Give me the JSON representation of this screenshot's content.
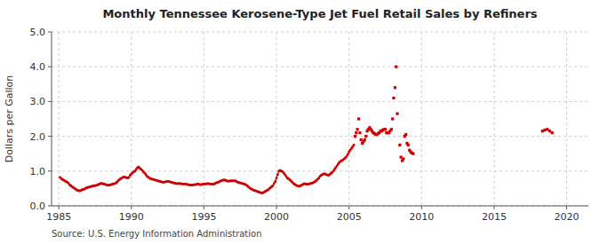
{
  "chart_data": {
    "type": "line",
    "title": "Monthly Tennessee Kerosene-Type Jet Fuel Retail Sales by Refiners",
    "ylabel": "Dollars per Gallon",
    "annotations": [
      "Source: U.S. Energy Information Administration"
    ],
    "xlim": [
      1984.5,
      2021.5
    ],
    "ylim": [
      0.0,
      5.0
    ],
    "xticks": [
      1985,
      1990,
      1995,
      2000,
      2005,
      2010,
      2015,
      2020
    ],
    "yticks": [
      {
        "value": 0.0,
        "label": "0.0"
      },
      {
        "value": 1.0,
        "label": "1.0"
      },
      {
        "value": 2.0,
        "label": "2.0"
      },
      {
        "value": 3.0,
        "label": "3.0"
      },
      {
        "value": 4.0,
        "label": "4.0"
      },
      {
        "value": 5.0,
        "label": "5.0"
      }
    ],
    "grid": true,
    "series": [
      {
        "type": "line",
        "color": "#cc0000",
        "marker": "square",
        "line_style": "solid",
        "x": [
          1985.08,
          1985.17,
          1985.25,
          1985.33,
          1985.42,
          1985.5,
          1985.58,
          1985.67,
          1985.75,
          1985.83,
          1985.92,
          1986.0,
          1986.08,
          1986.17,
          1986.25,
          1986.33,
          1986.42,
          1986.5,
          1986.58,
          1986.67,
          1986.75,
          1986.83,
          1986.92,
          1987.0,
          1987.08,
          1987.17,
          1987.25,
          1987.33,
          1987.42,
          1987.5,
          1987.58,
          1987.67,
          1987.75,
          1987.83,
          1987.92,
          1988.0,
          1988.08,
          1988.17,
          1988.25,
          1988.33,
          1988.42,
          1988.5,
          1988.58,
          1988.67,
          1988.75,
          1988.83,
          1988.92,
          1989.0,
          1989.08,
          1989.17,
          1989.25,
          1989.33,
          1989.42,
          1989.5,
          1989.58,
          1989.67,
          1989.75,
          1989.83,
          1989.92,
          1990.0,
          1990.08,
          1990.17,
          1990.25,
          1990.33,
          1990.42,
          1990.5,
          1990.58,
          1990.67,
          1990.75,
          1990.83,
          1990.92,
          1991.0,
          1991.08,
          1991.17,
          1991.25,
          1991.33,
          1991.42,
          1991.5,
          1991.58,
          1991.67,
          1991.75,
          1991.83,
          1991.92,
          1992.0,
          1992.08,
          1992.17,
          1992.25,
          1992.33,
          1992.42,
          1992.5,
          1992.58,
          1992.67,
          1992.75,
          1992.83,
          1992.92,
          1993.0,
          1993.08,
          1993.17,
          1993.25,
          1993.33,
          1993.42,
          1993.5,
          1993.58,
          1993.67,
          1993.75,
          1993.83,
          1993.92,
          1994.0,
          1994.08,
          1994.17,
          1994.25,
          1994.33,
          1994.42,
          1994.5,
          1994.58,
          1994.67,
          1994.75,
          1994.83,
          1994.92,
          1995.0,
          1995.08,
          1995.17,
          1995.25,
          1995.33,
          1995.42,
          1995.5,
          1995.58,
          1995.67,
          1995.75,
          1995.83,
          1995.92,
          1996.0,
          1996.08,
          1996.17,
          1996.25,
          1996.33,
          1996.42,
          1996.5,
          1996.58,
          1996.67,
          1996.75,
          1996.83,
          1996.92,
          1997.0,
          1997.08,
          1997.17,
          1997.25,
          1997.33,
          1997.42,
          1997.5,
          1997.58,
          1997.67,
          1997.75,
          1997.83,
          1997.92,
          1998.0,
          1998.08,
          1998.17,
          1998.25,
          1998.33,
          1998.42,
          1998.5,
          1998.58,
          1998.67,
          1998.75,
          1998.83,
          1998.92,
          1999.0,
          1999.08,
          1999.17,
          1999.25,
          1999.33,
          1999.42,
          1999.5,
          1999.58,
          1999.67,
          1999.75,
          1999.83,
          1999.92,
          2000.0,
          2000.08,
          2000.17,
          2000.25,
          2000.33,
          2000.42,
          2000.5,
          2000.58,
          2000.67,
          2000.75,
          2000.83,
          2000.92,
          2001.0,
          2001.08,
          2001.17,
          2001.25,
          2001.33,
          2001.42,
          2001.5,
          2001.58,
          2001.67,
          2001.75,
          2001.83,
          2001.92,
          2002.0,
          2002.08,
          2002.17,
          2002.25,
          2002.33,
          2002.42,
          2002.5,
          2002.58,
          2002.67,
          2002.75,
          2002.83,
          2002.92,
          2003.0,
          2003.08,
          2003.17,
          2003.25,
          2003.33,
          2003.42,
          2003.5,
          2003.58,
          2003.67,
          2003.75,
          2003.83,
          2003.92,
          2004.0,
          2004.08,
          2004.17,
          2004.25,
          2004.33,
          2004.42,
          2004.5,
          2004.58,
          2004.67,
          2004.75,
          2004.83,
          2004.92,
          2005.0,
          2005.08,
          2005.17,
          2005.25,
          2005.33
        ],
        "values": [
          0.82,
          0.78,
          0.76,
          0.74,
          0.72,
          0.7,
          0.68,
          0.65,
          0.6,
          0.58,
          0.55,
          0.53,
          0.5,
          0.48,
          0.45,
          0.44,
          0.43,
          0.44,
          0.46,
          0.47,
          0.48,
          0.5,
          0.52,
          0.53,
          0.54,
          0.55,
          0.56,
          0.57,
          0.58,
          0.58,
          0.59,
          0.6,
          0.62,
          0.63,
          0.65,
          0.64,
          0.63,
          0.62,
          0.61,
          0.6,
          0.59,
          0.6,
          0.61,
          0.62,
          0.63,
          0.64,
          0.65,
          0.68,
          0.72,
          0.75,
          0.78,
          0.8,
          0.82,
          0.83,
          0.82,
          0.81,
          0.8,
          0.82,
          0.88,
          0.92,
          0.95,
          0.98,
          1.0,
          1.05,
          1.1,
          1.12,
          1.08,
          1.05,
          1.02,
          0.98,
          0.94,
          0.9,
          0.85,
          0.82,
          0.8,
          0.78,
          0.77,
          0.76,
          0.75,
          0.74,
          0.73,
          0.72,
          0.71,
          0.7,
          0.69,
          0.68,
          0.68,
          0.69,
          0.7,
          0.7,
          0.7,
          0.69,
          0.68,
          0.67,
          0.66,
          0.65,
          0.64,
          0.64,
          0.64,
          0.64,
          0.64,
          0.63,
          0.63,
          0.63,
          0.62,
          0.62,
          0.61,
          0.6,
          0.6,
          0.6,
          0.6,
          0.61,
          0.61,
          0.62,
          0.63,
          0.62,
          0.61,
          0.61,
          0.62,
          0.63,
          0.63,
          0.63,
          0.64,
          0.64,
          0.63,
          0.63,
          0.62,
          0.62,
          0.64,
          0.66,
          0.67,
          0.68,
          0.7,
          0.72,
          0.73,
          0.74,
          0.75,
          0.73,
          0.72,
          0.71,
          0.71,
          0.72,
          0.72,
          0.72,
          0.72,
          0.72,
          0.7,
          0.68,
          0.67,
          0.66,
          0.65,
          0.64,
          0.63,
          0.62,
          0.6,
          0.57,
          0.54,
          0.51,
          0.49,
          0.47,
          0.45,
          0.44,
          0.43,
          0.42,
          0.4,
          0.39,
          0.38,
          0.37,
          0.38,
          0.4,
          0.42,
          0.44,
          0.46,
          0.49,
          0.52,
          0.55,
          0.58,
          0.64,
          0.7,
          0.8,
          0.9,
          1.0,
          1.02,
          1.0,
          0.98,
          0.95,
          0.9,
          0.85,
          0.8,
          0.78,
          0.75,
          0.72,
          0.68,
          0.65,
          0.62,
          0.6,
          0.58,
          0.57,
          0.56,
          0.58,
          0.6,
          0.62,
          0.64,
          0.63,
          0.62,
          0.62,
          0.63,
          0.64,
          0.65,
          0.66,
          0.68,
          0.7,
          0.73,
          0.76,
          0.8,
          0.85,
          0.88,
          0.9,
          0.92,
          0.92,
          0.9,
          0.89,
          0.88,
          0.9,
          0.93,
          0.96,
          1.0,
          1.05,
          1.1,
          1.15,
          1.2,
          1.25,
          1.28,
          1.3,
          1.32,
          1.35,
          1.38,
          1.42,
          1.48,
          1.55,
          1.6,
          1.65,
          1.7,
          1.75
        ]
      },
      {
        "type": "scatter",
        "color": "#cc0000",
        "marker": "square",
        "x": [
          2005.42,
          2005.5,
          2005.58,
          2005.67,
          2005.75,
          2005.83,
          2005.92,
          2006.0,
          2006.08,
          2006.17,
          2006.25,
          2006.33,
          2006.42,
          2006.5,
          2006.58,
          2006.67,
          2006.75,
          2006.83,
          2006.92,
          2007.0,
          2007.08,
          2007.17,
          2007.25,
          2007.33,
          2007.42,
          2007.5,
          2007.58,
          2007.67,
          2007.75,
          2007.83,
          2007.92,
          2008.0,
          2008.08,
          2008.17,
          2008.25,
          2008.33,
          2008.5,
          2008.58,
          2008.67,
          2008.75,
          2008.83,
          2008.92,
          2009.0,
          2009.08,
          2009.17,
          2009.25,
          2009.33,
          2009.42
        ],
        "values": [
          2.0,
          2.1,
          2.2,
          2.5,
          2.1,
          1.9,
          1.8,
          1.85,
          1.9,
          2.0,
          2.15,
          2.2,
          2.25,
          2.2,
          2.15,
          2.1,
          2.08,
          2.05,
          2.05,
          2.08,
          2.1,
          2.15,
          2.15,
          2.18,
          2.2,
          2.2,
          2.1,
          2.1,
          2.1,
          2.15,
          2.2,
          2.5,
          3.1,
          3.4,
          4.0,
          2.65,
          1.75,
          1.4,
          1.3,
          1.35,
          2.0,
          2.05,
          1.8,
          1.75,
          1.6,
          1.55,
          1.52,
          1.5
        ]
      },
      {
        "type": "scatter",
        "color": "#cc0000",
        "marker": "square",
        "x": [
          2018.33,
          2018.5,
          2018.67,
          2018.83,
          2019.0
        ],
        "values": [
          2.15,
          2.18,
          2.2,
          2.15,
          2.1
        ]
      }
    ]
  }
}
